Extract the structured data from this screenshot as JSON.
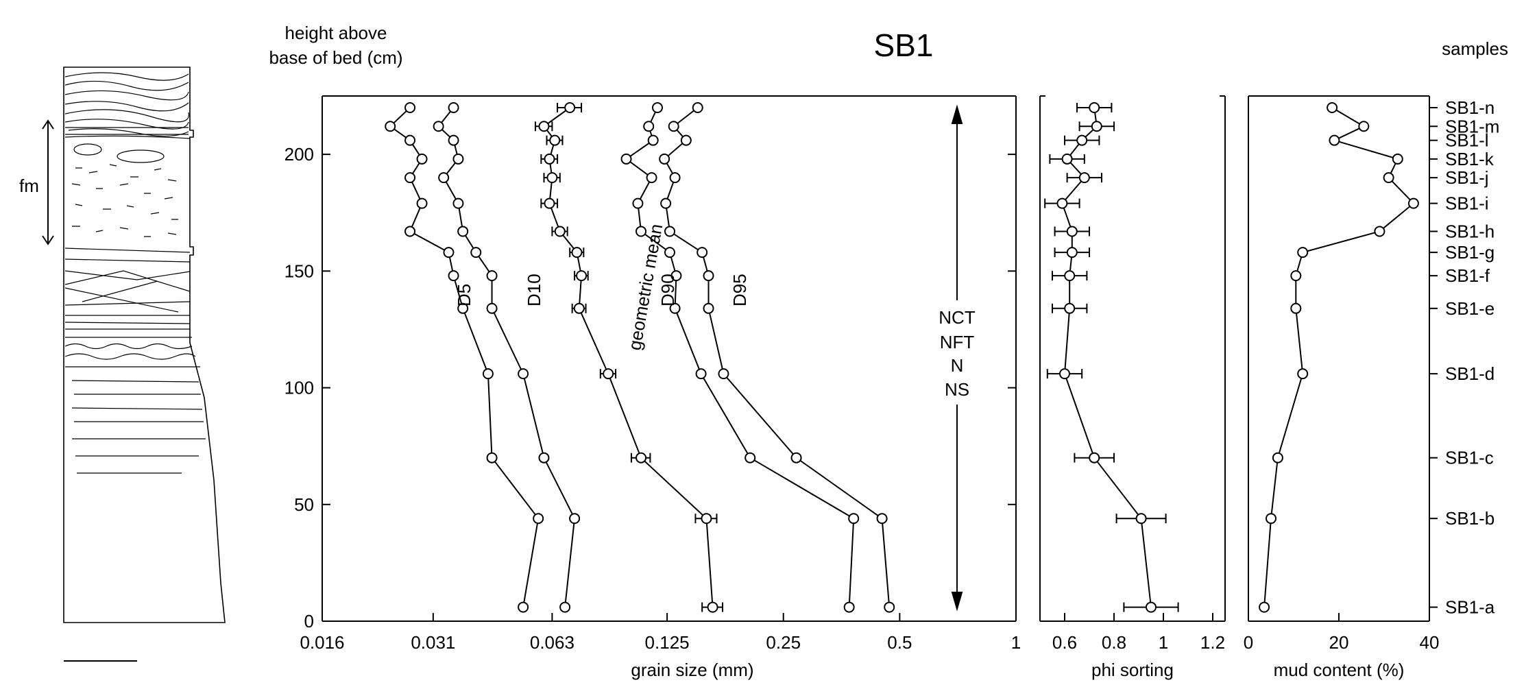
{
  "title": "SB1",
  "left_axis": {
    "label_line1": "height above",
    "label_line2": "base of bed (cm)",
    "ticks": [
      0,
      50,
      100,
      150,
      200
    ],
    "ylim": [
      0,
      225
    ]
  },
  "samples_header": "samples",
  "arrow_labels": [
    "NCT",
    "NFT",
    "N",
    "NS"
  ],
  "log_label": "fm",
  "chart_data": [
    {
      "type": "line",
      "title": "",
      "xlabel": "grain size (mm)",
      "ylabel": "height above base of bed (cm)",
      "xscale": "log2",
      "xlim": [
        0.016,
        1
      ],
      "ylim": [
        0,
        225
      ],
      "xticks": [
        0.016,
        0.031,
        0.063,
        0.125,
        0.25,
        0.5,
        1
      ],
      "xtick_labels": [
        "0.016",
        "0.031",
        "0.063",
        "0.125",
        "0.25",
        "0.5",
        "1"
      ],
      "yticks": [
        0,
        50,
        100,
        150,
        200
      ],
      "grid": false,
      "series": [
        {
          "name": "D5",
          "y": [
            6,
            44,
            70,
            106,
            134,
            148,
            158,
            167,
            179,
            190,
            198,
            206,
            212,
            220
          ],
          "x": [
            0.053,
            0.058,
            0.044,
            0.043,
            0.037,
            0.035,
            0.034,
            0.027,
            0.029,
            0.027,
            0.029,
            0.027,
            0.024,
            0.027
          ]
        },
        {
          "name": "D10",
          "y": [
            6,
            44,
            70,
            106,
            134,
            148,
            158,
            167,
            179,
            190,
            198,
            206,
            212,
            220
          ],
          "x": [
            0.068,
            0.072,
            0.06,
            0.053,
            0.044,
            0.044,
            0.04,
            0.037,
            0.036,
            0.033,
            0.036,
            0.035,
            0.032,
            0.035
          ]
        },
        {
          "name": "geometric mean",
          "y": [
            6,
            44,
            70,
            106,
            134,
            148,
            158,
            167,
            179,
            190,
            198,
            206,
            212,
            220
          ],
          "x": [
            0.164,
            0.158,
            0.107,
            0.088,
            0.074,
            0.075,
            0.073,
            0.066,
            0.062,
            0.063,
            0.062,
            0.064,
            0.06,
            0.07
          ],
          "xerr": [
            0.01,
            0.01,
            0.006,
            0.004,
            0.003,
            0.003,
            0.003,
            0.003,
            0.003,
            0.003,
            0.003,
            0.003,
            0.003,
            0.005
          ]
        },
        {
          "name": "D90",
          "y": [
            6,
            44,
            70,
            106,
            134,
            148,
            158,
            167,
            179,
            190,
            198,
            206,
            212,
            220
          ],
          "x": [
            0.37,
            0.38,
            0.205,
            0.153,
            0.131,
            0.132,
            0.127,
            0.107,
            0.105,
            0.114,
            0.098,
            0.115,
            0.112,
            0.118
          ]
        },
        {
          "name": "D95",
          "y": [
            6,
            44,
            70,
            106,
            134,
            148,
            158,
            167,
            179,
            190,
            198,
            206,
            212,
            220
          ],
          "x": [
            0.47,
            0.45,
            0.27,
            0.175,
            0.16,
            0.16,
            0.154,
            0.127,
            0.124,
            0.131,
            0.123,
            0.14,
            0.13,
            0.15
          ]
        }
      ]
    },
    {
      "type": "line",
      "title": "",
      "xlabel": "phi sorting",
      "xlim": [
        0.5,
        1.25
      ],
      "ylim": [
        0,
        225
      ],
      "xticks": [
        0.6,
        0.8,
        1,
        1.2
      ],
      "xtick_labels": [
        "0.6",
        "0.8",
        "1",
        "1.2"
      ],
      "grid": false,
      "series": [
        {
          "name": "",
          "y": [
            6,
            44,
            70,
            106,
            134,
            148,
            158,
            167,
            179,
            190,
            198,
            206,
            212,
            220
          ],
          "x": [
            0.95,
            0.91,
            0.72,
            0.6,
            0.62,
            0.62,
            0.63,
            0.63,
            0.59,
            0.68,
            0.61,
            0.67,
            0.73,
            0.72
          ],
          "xerr": [
            0.11,
            0.1,
            0.08,
            0.07,
            0.07,
            0.07,
            0.07,
            0.07,
            0.07,
            0.07,
            0.07,
            0.07,
            0.07,
            0.07
          ]
        }
      ]
    },
    {
      "type": "line",
      "title": "",
      "xlabel": "mud content (%)",
      "xlim": [
        0,
        40
      ],
      "ylim": [
        0,
        225
      ],
      "xticks": [
        0,
        20,
        40
      ],
      "xtick_labels": [
        "0",
        "20",
        "40"
      ],
      "grid": false,
      "series": [
        {
          "name": "",
          "y": [
            6,
            44,
            70,
            106,
            134,
            148,
            158,
            167,
            179,
            190,
            198,
            206,
            212,
            220
          ],
          "x": [
            3.5,
            5,
            6.5,
            12,
            10.5,
            10.5,
            12,
            29,
            36.5,
            31,
            33,
            19,
            25.5,
            18.5
          ]
        }
      ]
    }
  ],
  "samples": [
    {
      "label": "SB1-n",
      "y": 220
    },
    {
      "label": "SB1-m",
      "y": 212
    },
    {
      "label": "SB1-l",
      "y": 206
    },
    {
      "label": "SB1-k",
      "y": 198
    },
    {
      "label": "SB1-j",
      "y": 190
    },
    {
      "label": "SB1-i",
      "y": 179
    },
    {
      "label": "SB1-h",
      "y": 167
    },
    {
      "label": "SB1-g",
      "y": 158
    },
    {
      "label": "SB1-f",
      "y": 148
    },
    {
      "label": "SB1-e",
      "y": 134
    },
    {
      "label": "SB1-d",
      "y": 106
    },
    {
      "label": "SB1-c",
      "y": 70
    },
    {
      "label": "SB1-b",
      "y": 44
    },
    {
      "label": "SB1-a",
      "y": 6
    }
  ]
}
